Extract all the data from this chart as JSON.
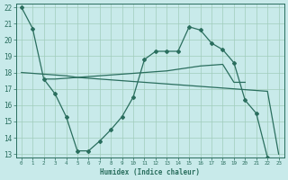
{
  "xlabel": "Humidex (Indice chaleur)",
  "xlim": [
    -0.5,
    23.5
  ],
  "ylim": [
    12.8,
    22.2
  ],
  "yticks": [
    13,
    14,
    15,
    16,
    17,
    18,
    19,
    20,
    21,
    22
  ],
  "xticks": [
    0,
    1,
    2,
    3,
    4,
    5,
    6,
    7,
    8,
    9,
    10,
    11,
    12,
    13,
    14,
    15,
    16,
    17,
    18,
    19,
    20,
    21,
    22,
    23
  ],
  "bg_color": "#c8eaea",
  "grid_color": "#a0ccbb",
  "line_color": "#2a6e5e",
  "series": {
    "line1_with_markers": {
      "x": [
        0,
        1,
        2,
        3,
        4,
        5,
        6,
        7,
        8,
        9,
        10,
        11,
        12,
        13,
        14,
        15,
        16,
        17,
        18,
        19,
        20,
        21,
        22
      ],
      "y": [
        22.0,
        20.7,
        17.6,
        16.7,
        15.3,
        13.2,
        13.2,
        13.8,
        14.5,
        15.3,
        16.5,
        18.8,
        19.3,
        19.3,
        19.3,
        20.8,
        20.6,
        19.8,
        19.4,
        18.6,
        16.3,
        15.5,
        12.8
      ]
    },
    "line2_flat_rising": {
      "x": [
        2,
        3,
        4,
        5,
        6,
        7,
        8,
        9,
        10,
        11,
        12,
        13,
        14,
        15,
        16,
        17,
        18,
        19,
        20
      ],
      "y": [
        17.6,
        17.6,
        17.65,
        17.7,
        17.75,
        17.8,
        17.85,
        17.9,
        17.95,
        18.0,
        18.05,
        18.1,
        18.2,
        18.3,
        18.4,
        18.45,
        18.5,
        17.4,
        17.4
      ]
    },
    "line3_descending": {
      "x": [
        0,
        1,
        2,
        3,
        4,
        5,
        6,
        7,
        8,
        9,
        10,
        11,
        12,
        13,
        14,
        15,
        16,
        17,
        18,
        19,
        20,
        21,
        22,
        23
      ],
      "y": [
        18.0,
        17.95,
        17.9,
        17.85,
        17.8,
        17.7,
        17.65,
        17.6,
        17.55,
        17.5,
        17.45,
        17.4,
        17.35,
        17.3,
        17.25,
        17.2,
        17.15,
        17.1,
        17.05,
        17.0,
        16.95,
        16.9,
        16.85,
        13.0
      ]
    }
  }
}
